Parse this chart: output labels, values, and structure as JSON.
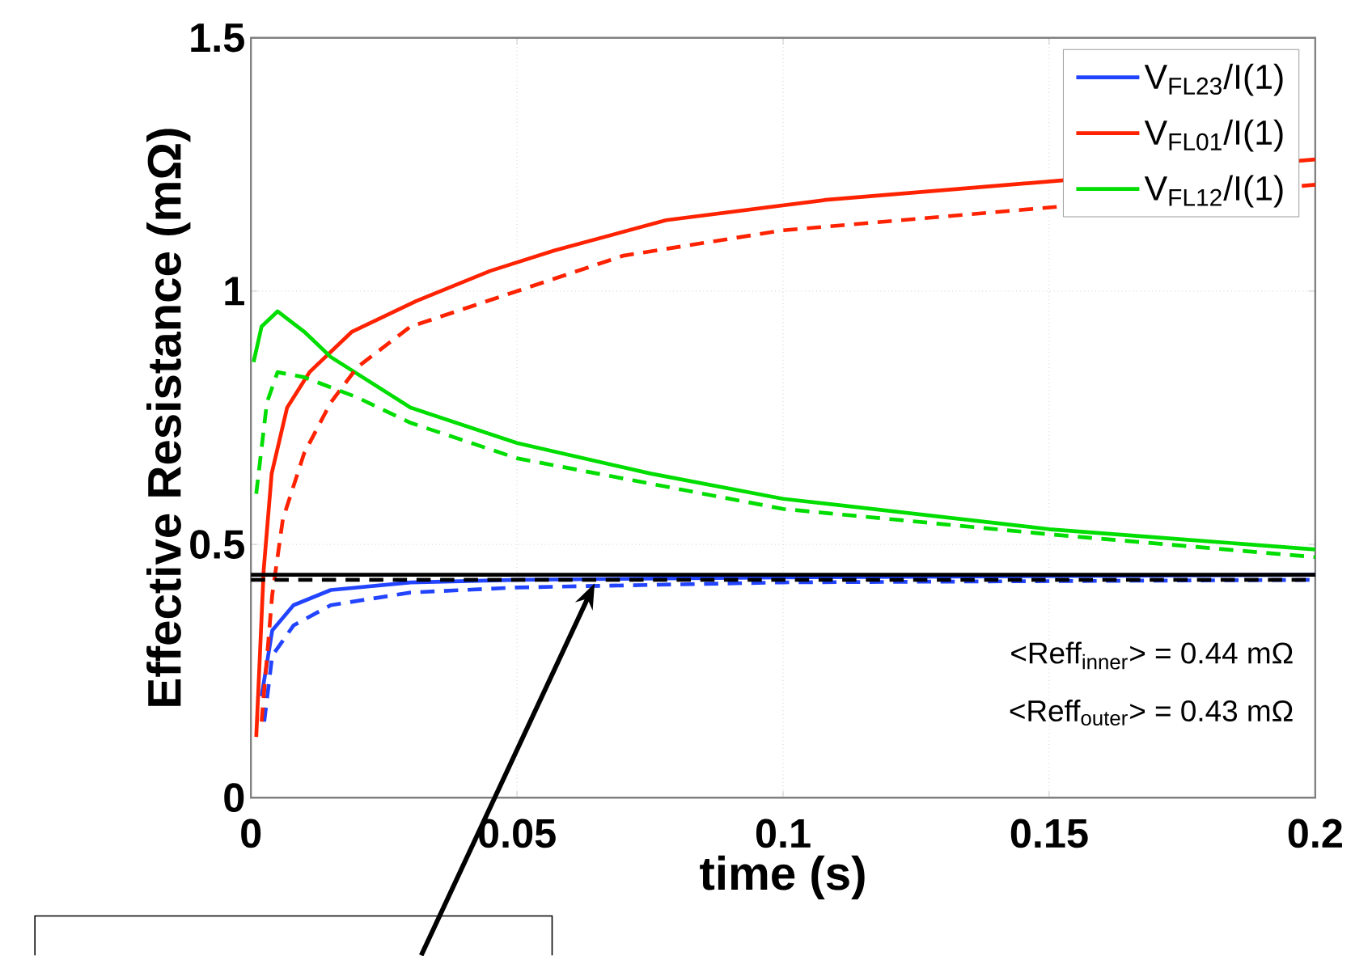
{
  "chart_data": {
    "type": "line",
    "xlabel": "time (s)",
    "ylabel": "Effective Resistance (mΩ)",
    "xlim": [
      0,
      0.2
    ],
    "ylim": [
      0,
      1.5
    ],
    "xticks": [
      0,
      0.05,
      0.1,
      0.15,
      0.2
    ],
    "yticks": [
      0,
      0.5,
      1,
      1.5
    ],
    "grid": true,
    "legend": "top right",
    "series": [
      {
        "name": "V$_{FL23}$/I(1)",
        "color": "#2244ff",
        "line_style": "solid",
        "x": [
          0.002,
          0.004,
          0.008,
          0.015,
          0.03,
          0.05,
          0.1,
          0.2
        ],
        "values": [
          0.2,
          0.33,
          0.38,
          0.41,
          0.425,
          0.43,
          0.435,
          0.44
        ]
      },
      {
        "name": "V$_{FL01}$/I(1)",
        "color": "#ff2200",
        "line_style": "solid",
        "x": [
          0.001,
          0.0024,
          0.0039,
          0.0068,
          0.011,
          0.019,
          0.031,
          0.045,
          0.051,
          0.057,
          0.078,
          0.108,
          0.137,
          0.167,
          0.2
        ],
        "values": [
          0.12,
          0.45,
          0.64,
          0.77,
          0.84,
          0.92,
          0.98,
          1.04,
          1.06,
          1.08,
          1.14,
          1.18,
          null,
          null,
          1.26
        ]
      },
      {
        "name": "V$_{FL12}$/I(1)",
        "color": "#00dd00",
        "line_style": "solid",
        "x": [
          0.0005,
          0.002,
          0.005,
          0.01,
          0.015,
          0.03,
          0.05,
          0.075,
          0.1,
          0.125,
          0.15,
          0.175,
          0.2
        ],
        "values": [
          0.86,
          0.93,
          0.96,
          0.92,
          0.87,
          0.77,
          0.7,
          0.64,
          0.59,
          0.56,
          0.53,
          0.51,
          0.49
        ]
      },
      {
        "color": "#2244ff",
        "line_style": "dashed",
        "x": [
          0.0025,
          0.004,
          0.008,
          0.015,
          0.03,
          0.05,
          0.1,
          0.2
        ],
        "values": [
          0.15,
          0.28,
          0.34,
          0.38,
          0.405,
          0.415,
          0.425,
          0.43
        ]
      },
      {
        "color": "#ff2200",
        "line_style": "dashed",
        "x": [
          0.002,
          0.004,
          0.006,
          0.01,
          0.015,
          0.02,
          0.03,
          0.05,
          0.07,
          0.1,
          0.15,
          0.2
        ],
        "values": [
          0.15,
          0.4,
          0.55,
          0.68,
          0.78,
          0.85,
          0.93,
          1.0,
          1.07,
          1.12,
          null,
          1.21
        ]
      },
      {
        "color": "#00dd00",
        "line_style": "dashed",
        "x": [
          0.001,
          0.003,
          0.005,
          0.01,
          0.02,
          0.03,
          0.05,
          0.075,
          0.1,
          0.15,
          0.2
        ],
        "values": [
          0.6,
          0.78,
          0.84,
          0.83,
          0.79,
          0.74,
          0.67,
          0.62,
          0.57,
          0.52,
          0.475
        ]
      }
    ],
    "ref_lines": [
      {
        "axis": "y",
        "value": 0.44,
        "color": "#000000",
        "line_style": "solid"
      },
      {
        "axis": "y",
        "value": 0.43,
        "color": "#000000",
        "line_style": "dashed"
      }
    ],
    "annotations": [
      "<Reff$_{inner}$> = 0.44 mΩ",
      "<Reff$_{outer}$> = 0.43 mΩ"
    ]
  }
}
